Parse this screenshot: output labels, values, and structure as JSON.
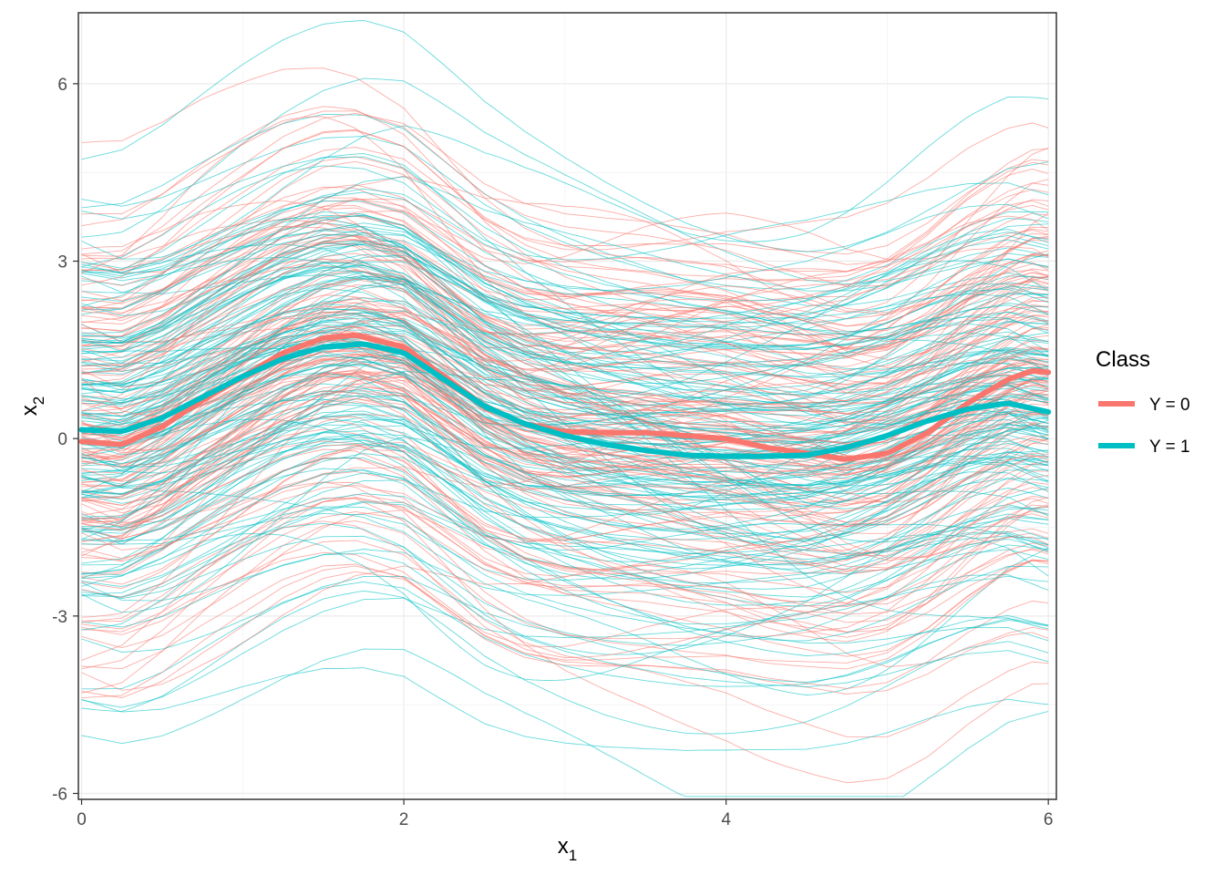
{
  "chart_data": {
    "type": "line",
    "xlabel": {
      "base": "x",
      "sub": "1"
    },
    "ylabel": {
      "base": "x",
      "sub": "2"
    },
    "xlim": [
      -0.02,
      6.05
    ],
    "ylim": [
      -6.1,
      7.2
    ],
    "x_ticks": [
      0,
      2,
      4,
      6
    ],
    "x_tick_labels": [
      "0",
      "2",
      "4",
      "6"
    ],
    "y_ticks": [
      -6,
      -3,
      0,
      3,
      6
    ],
    "y_tick_labels": [
      "-6",
      "-3",
      "0",
      "3",
      "6"
    ],
    "grid": true,
    "legend": {
      "title": "Class",
      "position": "right",
      "entries": [
        {
          "label": "Y = 0",
          "color": "#F8766D"
        },
        {
          "label": "Y = 1",
          "color": "#00BFC4"
        }
      ]
    },
    "mean_series": [
      {
        "name": "Y = 0",
        "color": "#F8766D",
        "x": [
          0,
          0.25,
          0.5,
          0.75,
          1.0,
          1.25,
          1.5,
          1.7,
          2.0,
          2.25,
          2.5,
          2.75,
          3.0,
          3.25,
          3.5,
          3.75,
          4.0,
          4.25,
          4.5,
          4.75,
          5.0,
          5.25,
          5.5,
          5.75,
          5.9,
          6.0
        ],
        "y": [
          -0.05,
          -0.1,
          0.2,
          0.65,
          1.05,
          1.45,
          1.7,
          1.75,
          1.55,
          1.05,
          0.55,
          0.25,
          0.12,
          0.1,
          0.1,
          0.05,
          0.0,
          -0.15,
          -0.25,
          -0.35,
          -0.25,
          0.1,
          0.6,
          1.0,
          1.15,
          1.12
        ]
      },
      {
        "name": "Y = 1",
        "color": "#00BFC4",
        "x": [
          0,
          0.25,
          0.5,
          0.75,
          1.0,
          1.25,
          1.5,
          1.75,
          2.0,
          2.25,
          2.5,
          2.75,
          3.0,
          3.25,
          3.5,
          3.75,
          4.0,
          4.25,
          4.5,
          4.75,
          5.0,
          5.25,
          5.5,
          5.75,
          6.0
        ],
        "y": [
          0.15,
          0.12,
          0.35,
          0.7,
          1.05,
          1.35,
          1.55,
          1.6,
          1.45,
          1.0,
          0.55,
          0.25,
          0.05,
          -0.1,
          -0.2,
          -0.28,
          -0.3,
          -0.3,
          -0.28,
          -0.15,
          0.05,
          0.3,
          0.5,
          0.6,
          0.45
        ]
      }
    ],
    "sample_curves": {
      "count_per_class": 150,
      "description": "Random individual curves around each class mean, thin semi-transparent lines"
    }
  }
}
